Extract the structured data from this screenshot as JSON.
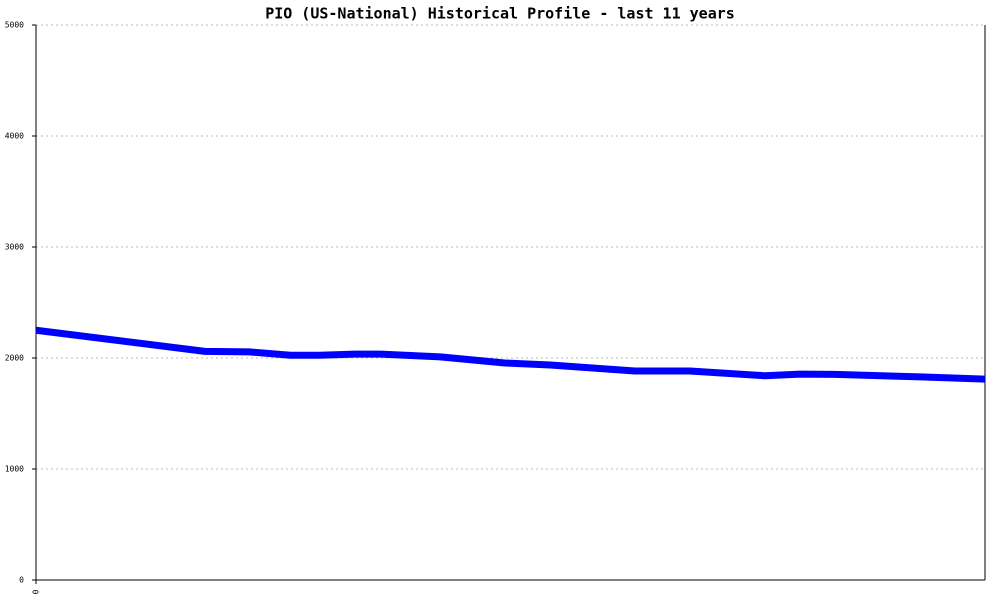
{
  "chart_data": {
    "type": "line",
    "title": "PIO (US-National) Historical Profile - last 11 years",
    "x": [
      0,
      17.8,
      22.5,
      26.8,
      29.9,
      33.6,
      36.2,
      42.6,
      49.4,
      54.2,
      63.1,
      68.9,
      76.8,
      80.5,
      84.2,
      93.2,
      100
    ],
    "series": [
      {
        "color": "#0000ff",
        "values": [
          2250,
          2060,
          2055,
          2025,
          2025,
          2035,
          2035,
          2010,
          1955,
          1937,
          1883,
          1883,
          1840,
          1855,
          1852,
          1830,
          1810
        ]
      }
    ],
    "xlim": [
      0,
      100
    ],
    "xticks": [
      0
    ],
    "ylim": [
      0,
      5000
    ],
    "yticks": [
      0,
      1000,
      2000,
      3000,
      4000,
      5000
    ],
    "grid": true
  }
}
